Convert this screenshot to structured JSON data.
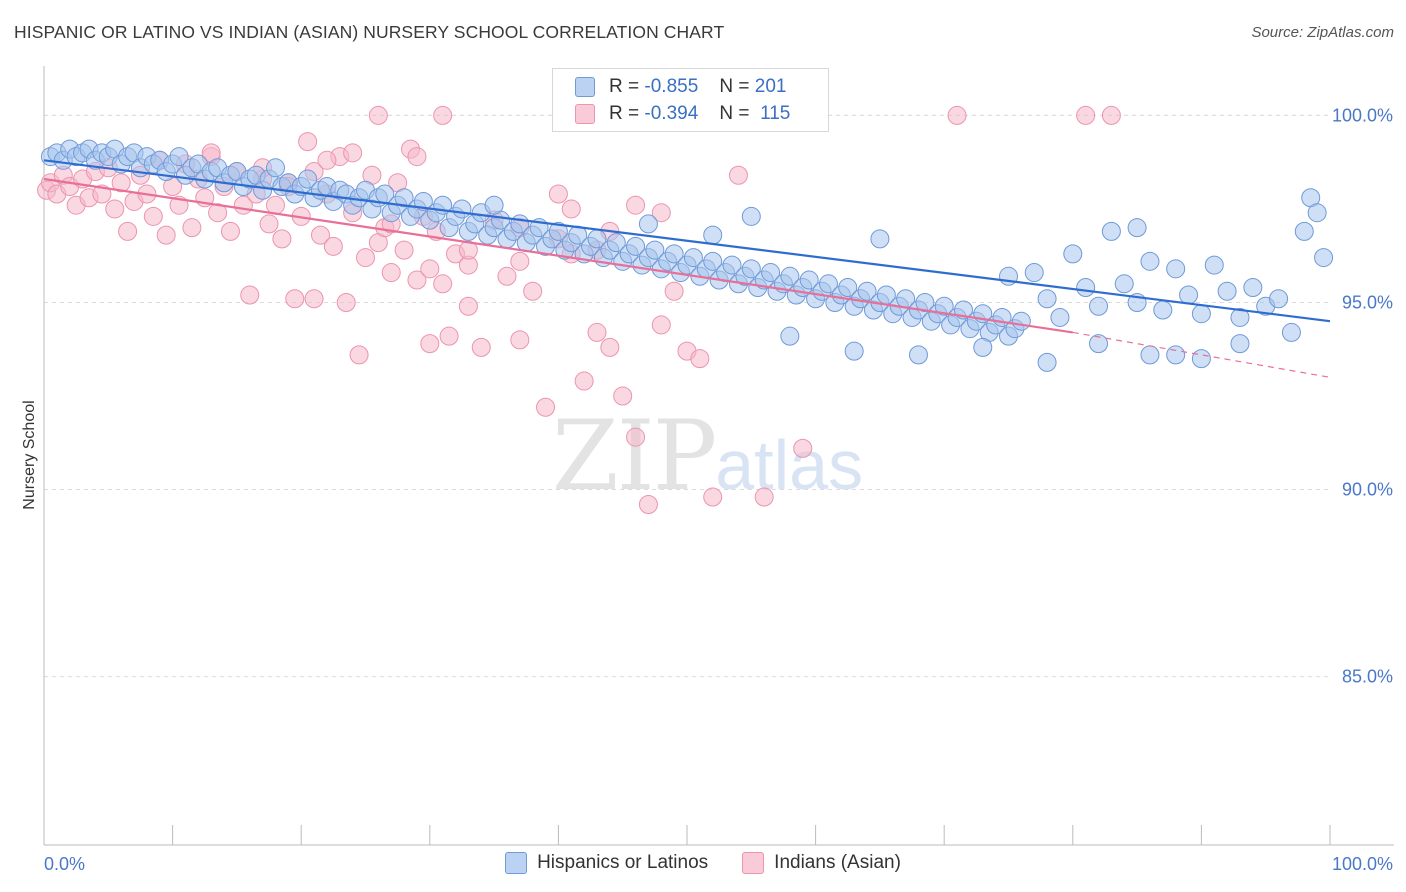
{
  "header": {
    "title": "HISPANIC OR LATINO VS INDIAN (ASIAN) NURSERY SCHOOL CORRELATION CHART",
    "source": "Source: ZipAtlas.com"
  },
  "watermark": {
    "zip": "ZIP",
    "atlas": "atlas"
  },
  "legend": {
    "rows": [
      {
        "r_label": "R =",
        "r_value": "-0.855",
        "n_label": "N =",
        "n_value": "201"
      },
      {
        "r_label": "R =",
        "r_value": "-0.394",
        "n_label": "N =",
        "n_value": "115"
      }
    ]
  },
  "bottom_legend": {
    "blue": "Hispanics or Latinos",
    "pink": "Indians (Asian)"
  },
  "colors": {
    "blue_fill": "#a8c4ec",
    "blue_stroke": "#6f9ad8",
    "blue_line": "#2f6ccf",
    "pink_fill": "#f6b8cb",
    "pink_stroke": "#ec94b0",
    "pink_line": "#e86f98"
  },
  "chart_data": {
    "type": "scatter",
    "xlabel": "",
    "ylabel": "Nursery School",
    "xlim": [
      0,
      100
    ],
    "ylim": [
      80.5,
      101.0
    ],
    "x_tick_labels": [
      "0.0%",
      "100.0%"
    ],
    "y_ticks": [
      85,
      90,
      95,
      100
    ],
    "y_tick_labels": [
      "85.0%",
      "90.0%",
      "95.0%",
      "100.0%"
    ],
    "grid": true,
    "series": [
      {
        "name": "Hispanics or Latinos",
        "trend": [
          [
            0,
            98.8
          ],
          [
            100,
            94.5
          ]
        ],
        "points": [
          [
            0.5,
            98.9
          ],
          [
            1,
            99.0
          ],
          [
            1.5,
            98.8
          ],
          [
            2,
            99.1
          ],
          [
            2.5,
            98.9
          ],
          [
            3,
            99.0
          ],
          [
            3.5,
            99.1
          ],
          [
            4,
            98.8
          ],
          [
            4.5,
            99.0
          ],
          [
            5,
            98.9
          ],
          [
            5.5,
            99.1
          ],
          [
            6,
            98.7
          ],
          [
            6.5,
            98.9
          ],
          [
            7,
            99.0
          ],
          [
            7.5,
            98.6
          ],
          [
            8,
            98.9
          ],
          [
            8.5,
            98.7
          ],
          [
            9,
            98.8
          ],
          [
            9.5,
            98.5
          ],
          [
            10,
            98.7
          ],
          [
            10.5,
            98.9
          ],
          [
            11,
            98.4
          ],
          [
            11.5,
            98.6
          ],
          [
            12,
            98.7
          ],
          [
            12.5,
            98.3
          ],
          [
            13,
            98.5
          ],
          [
            13.5,
            98.6
          ],
          [
            14,
            98.2
          ],
          [
            14.5,
            98.4
          ],
          [
            15,
            98.5
          ],
          [
            15.5,
            98.1
          ],
          [
            16,
            98.3
          ],
          [
            16.5,
            98.4
          ],
          [
            17,
            98.0
          ],
          [
            17.5,
            98.3
          ],
          [
            18,
            98.6
          ],
          [
            18.5,
            98.1
          ],
          [
            19,
            98.2
          ],
          [
            19.5,
            97.9
          ],
          [
            20,
            98.1
          ],
          [
            20.5,
            98.3
          ],
          [
            21,
            97.8
          ],
          [
            21.5,
            98.0
          ],
          [
            22,
            98.1
          ],
          [
            22.5,
            97.7
          ],
          [
            23,
            98.0
          ],
          [
            23.5,
            97.9
          ],
          [
            24,
            97.6
          ],
          [
            24.5,
            97.8
          ],
          [
            25,
            98.0
          ],
          [
            25.5,
            97.5
          ],
          [
            26,
            97.8
          ],
          [
            26.5,
            97.9
          ],
          [
            27,
            97.4
          ],
          [
            27.5,
            97.6
          ],
          [
            28,
            97.8
          ],
          [
            28.5,
            97.3
          ],
          [
            29,
            97.5
          ],
          [
            29.5,
            97.7
          ],
          [
            30,
            97.2
          ],
          [
            30.5,
            97.4
          ],
          [
            31,
            97.6
          ],
          [
            31.5,
            97.0
          ],
          [
            32,
            97.3
          ],
          [
            32.5,
            97.5
          ],
          [
            33,
            96.9
          ],
          [
            33.5,
            97.1
          ],
          [
            34,
            97.4
          ],
          [
            34.5,
            96.8
          ],
          [
            35,
            97.0
          ],
          [
            35.5,
            97.2
          ],
          [
            36,
            96.7
          ],
          [
            36.5,
            96.9
          ],
          [
            37,
            97.1
          ],
          [
            37.5,
            96.6
          ],
          [
            38,
            96.8
          ],
          [
            38.5,
            97.0
          ],
          [
            39,
            96.5
          ],
          [
            39.5,
            96.7
          ],
          [
            40,
            96.9
          ],
          [
            40.5,
            96.4
          ],
          [
            41,
            96.6
          ],
          [
            41.5,
            96.8
          ],
          [
            42,
            96.3
          ],
          [
            42.5,
            96.5
          ],
          [
            43,
            96.7
          ],
          [
            43.5,
            96.2
          ],
          [
            44,
            96.4
          ],
          [
            44.5,
            96.6
          ],
          [
            45,
            96.1
          ],
          [
            45.5,
            96.3
          ],
          [
            46,
            96.5
          ],
          [
            46.5,
            96.0
          ],
          [
            47,
            96.2
          ],
          [
            47.5,
            96.4
          ],
          [
            48,
            95.9
          ],
          [
            48.5,
            96.1
          ],
          [
            49,
            96.3
          ],
          [
            49.5,
            95.8
          ],
          [
            50,
            96.0
          ],
          [
            50.5,
            96.2
          ],
          [
            51,
            95.7
          ],
          [
            51.5,
            95.9
          ],
          [
            52,
            96.1
          ],
          [
            52.5,
            95.6
          ],
          [
            53,
            95.8
          ],
          [
            53.5,
            96.0
          ],
          [
            54,
            95.5
          ],
          [
            54.5,
            95.7
          ],
          [
            55,
            95.9
          ],
          [
            55.5,
            95.4
          ],
          [
            56,
            95.6
          ],
          [
            56.5,
            95.8
          ],
          [
            57,
            95.3
          ],
          [
            57.5,
            95.5
          ],
          [
            58,
            95.7
          ],
          [
            58.5,
            95.2
          ],
          [
            59,
            95.4
          ],
          [
            59.5,
            95.6
          ],
          [
            60,
            95.1
          ],
          [
            60.5,
            95.3
          ],
          [
            61,
            95.5
          ],
          [
            61.5,
            95.0
          ],
          [
            62,
            95.2
          ],
          [
            62.5,
            95.4
          ],
          [
            63,
            94.9
          ],
          [
            63.5,
            95.1
          ],
          [
            64,
            95.3
          ],
          [
            64.5,
            94.8
          ],
          [
            65,
            95.0
          ],
          [
            65.5,
            95.2
          ],
          [
            66,
            94.7
          ],
          [
            66.5,
            94.9
          ],
          [
            67,
            95.1
          ],
          [
            67.5,
            94.6
          ],
          [
            68,
            94.8
          ],
          [
            68.5,
            95.0
          ],
          [
            69,
            94.5
          ],
          [
            69.5,
            94.7
          ],
          [
            70,
            94.9
          ],
          [
            70.5,
            94.4
          ],
          [
            71,
            94.6
          ],
          [
            71.5,
            94.8
          ],
          [
            72,
            94.3
          ],
          [
            72.5,
            94.5
          ],
          [
            73,
            94.7
          ],
          [
            73.5,
            94.2
          ],
          [
            74,
            94.4
          ],
          [
            74.5,
            94.6
          ],
          [
            75,
            94.1
          ],
          [
            75.5,
            94.3
          ],
          [
            76,
            94.5
          ],
          [
            77,
            95.8
          ],
          [
            78,
            95.1
          ],
          [
            79,
            94.6
          ],
          [
            80,
            96.3
          ],
          [
            81,
            95.4
          ],
          [
            82,
            94.9
          ],
          [
            83,
            96.9
          ],
          [
            84,
            95.5
          ],
          [
            85,
            95.0
          ],
          [
            86,
            96.1
          ],
          [
            87,
            94.8
          ],
          [
            88,
            95.9
          ],
          [
            89,
            95.2
          ],
          [
            90,
            94.7
          ],
          [
            91,
            96.0
          ],
          [
            92,
            95.3
          ],
          [
            93,
            94.6
          ],
          [
            94,
            95.4
          ],
          [
            95,
            94.9
          ],
          [
            96,
            95.1
          ],
          [
            97,
            94.2
          ],
          [
            98,
            96.9
          ],
          [
            98.5,
            97.8
          ],
          [
            99,
            97.4
          ],
          [
            99.5,
            96.2
          ],
          [
            58,
            94.1
          ],
          [
            63,
            93.7
          ],
          [
            68,
            93.6
          ],
          [
            73,
            93.8
          ],
          [
            78,
            93.4
          ],
          [
            82,
            93.9
          ],
          [
            86,
            93.6
          ],
          [
            90,
            93.5
          ],
          [
            93,
            93.9
          ],
          [
            55,
            97.3
          ],
          [
            65,
            96.7
          ],
          [
            75,
            95.7
          ],
          [
            85,
            97.0
          ],
          [
            88,
            93.6
          ],
          [
            47,
            97.1
          ],
          [
            52,
            96.8
          ],
          [
            35,
            97.6
          ]
        ]
      },
      {
        "name": "Indians (Asian)",
        "trend": [
          [
            0,
            98.3
          ],
          [
            80,
            94.2
          ]
        ],
        "trend_dashed": [
          [
            80,
            94.2
          ],
          [
            100,
            93.0
          ]
        ],
        "points": [
          [
            0.2,
            98.0
          ],
          [
            0.5,
            98.2
          ],
          [
            1,
            97.9
          ],
          [
            1.5,
            98.4
          ],
          [
            2,
            98.1
          ],
          [
            2.5,
            97.6
          ],
          [
            3,
            98.3
          ],
          [
            3.5,
            97.8
          ],
          [
            4,
            98.5
          ],
          [
            4.5,
            97.9
          ],
          [
            5,
            98.6
          ],
          [
            5.5,
            97.5
          ],
          [
            6,
            98.2
          ],
          [
            6.5,
            96.9
          ],
          [
            7,
            97.7
          ],
          [
            7.5,
            98.4
          ],
          [
            8,
            97.9
          ],
          [
            8.5,
            97.3
          ],
          [
            9,
            98.8
          ],
          [
            9.5,
            96.8
          ],
          [
            10,
            98.1
          ],
          [
            10.5,
            97.6
          ],
          [
            11,
            98.7
          ],
          [
            11.5,
            97.0
          ],
          [
            12,
            98.3
          ],
          [
            12.5,
            97.8
          ],
          [
            13,
            98.9
          ],
          [
            13.5,
            97.4
          ],
          [
            14,
            98.1
          ],
          [
            14.5,
            96.9
          ],
          [
            15,
            98.5
          ],
          [
            15.5,
            97.6
          ],
          [
            16,
            95.2
          ],
          [
            16.5,
            97.9
          ],
          [
            17,
            98.3
          ],
          [
            17.5,
            97.1
          ],
          [
            18,
            97.6
          ],
          [
            18.5,
            96.7
          ],
          [
            19,
            98.2
          ],
          [
            19.5,
            95.1
          ],
          [
            20,
            97.3
          ],
          [
            20.5,
            99.3
          ],
          [
            21,
            98.5
          ],
          [
            21.5,
            96.8
          ],
          [
            22,
            97.9
          ],
          [
            22.5,
            96.5
          ],
          [
            23,
            98.9
          ],
          [
            23.5,
            95.0
          ],
          [
            24,
            97.4
          ],
          [
            24.5,
            93.6
          ],
          [
            25,
            96.2
          ],
          [
            25.5,
            98.4
          ],
          [
            26,
            96.6
          ],
          [
            26.5,
            97.0
          ],
          [
            27,
            95.8
          ],
          [
            27.5,
            98.2
          ],
          [
            28,
            96.4
          ],
          [
            28.5,
            99.1
          ],
          [
            29,
            95.6
          ],
          [
            29.5,
            97.3
          ],
          [
            30,
            93.9
          ],
          [
            30.5,
            96.9
          ],
          [
            31,
            95.5
          ],
          [
            31.5,
            94.1
          ],
          [
            32,
            96.3
          ],
          [
            33,
            94.9
          ],
          [
            34,
            93.8
          ],
          [
            35,
            97.2
          ],
          [
            36,
            95.7
          ],
          [
            37,
            94.0
          ],
          [
            38,
            95.3
          ],
          [
            39,
            92.2
          ],
          [
            40,
            96.7
          ],
          [
            41,
            97.5
          ],
          [
            42,
            92.9
          ],
          [
            43,
            94.2
          ],
          [
            44,
            93.8
          ],
          [
            45,
            92.5
          ],
          [
            46,
            91.4
          ],
          [
            47,
            89.6
          ],
          [
            48,
            94.4
          ],
          [
            49,
            95.3
          ],
          [
            50,
            93.7
          ],
          [
            51,
            93.5
          ],
          [
            52,
            89.8
          ],
          [
            54,
            98.4
          ],
          [
            56,
            89.8
          ],
          [
            59,
            91.1
          ],
          [
            26,
            100.0
          ],
          [
            31,
            100.0
          ],
          [
            50,
            100.0
          ],
          [
            71,
            100.0
          ],
          [
            81,
            100.0
          ],
          [
            83,
            100.0
          ],
          [
            22,
            98.8
          ],
          [
            24,
            99.0
          ],
          [
            29,
            98.9
          ],
          [
            33,
            96.0
          ],
          [
            37,
            96.1
          ],
          [
            41,
            96.3
          ],
          [
            44,
            96.9
          ],
          [
            46,
            97.6
          ],
          [
            48,
            97.4
          ],
          [
            21,
            95.1
          ],
          [
            13,
            99.0
          ],
          [
            17,
            98.6
          ],
          [
            19,
            98.1
          ],
          [
            27,
            97.1
          ],
          [
            33,
            96.4
          ],
          [
            37,
            97.0
          ],
          [
            40,
            97.9
          ],
          [
            43,
            96.4
          ],
          [
            30,
            95.9
          ]
        ]
      }
    ]
  }
}
